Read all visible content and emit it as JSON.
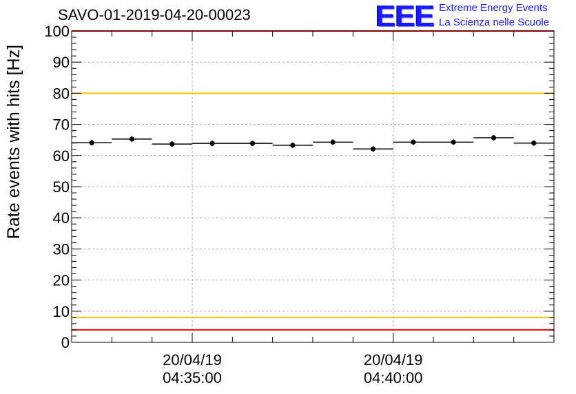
{
  "header": {
    "run_id": "SAVO-01-2019-04-20-00023",
    "logo_text": "EEE",
    "logo_line1": "Extreme Energy Events",
    "logo_line2": "La Scienza nelle Scuole"
  },
  "colors": {
    "red_limit": "#ff0000",
    "yellow_limit": "#f2c500",
    "logo_blue": "#1a1aff"
  },
  "chart_data": {
    "type": "scatter",
    "title": "SAVO-01-2019-04-20-00023",
    "ylabel": "Rate events with hits [Hz]",
    "xlabel": "",
    "xlim": [
      0,
      720
    ],
    "ylim": [
      0,
      100
    ],
    "y_ticks": [
      0,
      10,
      20,
      30,
      40,
      50,
      60,
      70,
      80,
      90,
      100
    ],
    "x_tick_labels": [
      {
        "x": 180,
        "date": "20/04/19",
        "time": "04:35:00"
      },
      {
        "x": 480,
        "date": "20/04/19",
        "time": "04:40:00"
      }
    ],
    "grid": true,
    "bin_width": 60,
    "points": [
      {
        "x": 0,
        "y": 64.1
      },
      {
        "x": 60,
        "y": 65.3
      },
      {
        "x": 120,
        "y": 63.7
      },
      {
        "x": 180,
        "y": 63.9
      },
      {
        "x": 240,
        "y": 63.9
      },
      {
        "x": 300,
        "y": 63.3
      },
      {
        "x": 360,
        "y": 64.3
      },
      {
        "x": 420,
        "y": 62.1
      },
      {
        "x": 480,
        "y": 64.3
      },
      {
        "x": 540,
        "y": 64.3
      },
      {
        "x": 600,
        "y": 65.7
      },
      {
        "x": 660,
        "y": 64.0
      }
    ],
    "reference_lines": [
      {
        "name": "upper-red",
        "y": 100,
        "color": "#ff0000"
      },
      {
        "name": "upper-yellow",
        "y": 80,
        "color": "#f2c500"
      },
      {
        "name": "lower-yellow",
        "y": 8,
        "color": "#f2c500"
      },
      {
        "name": "lower-red",
        "y": 4,
        "color": "#ff0000"
      }
    ]
  }
}
